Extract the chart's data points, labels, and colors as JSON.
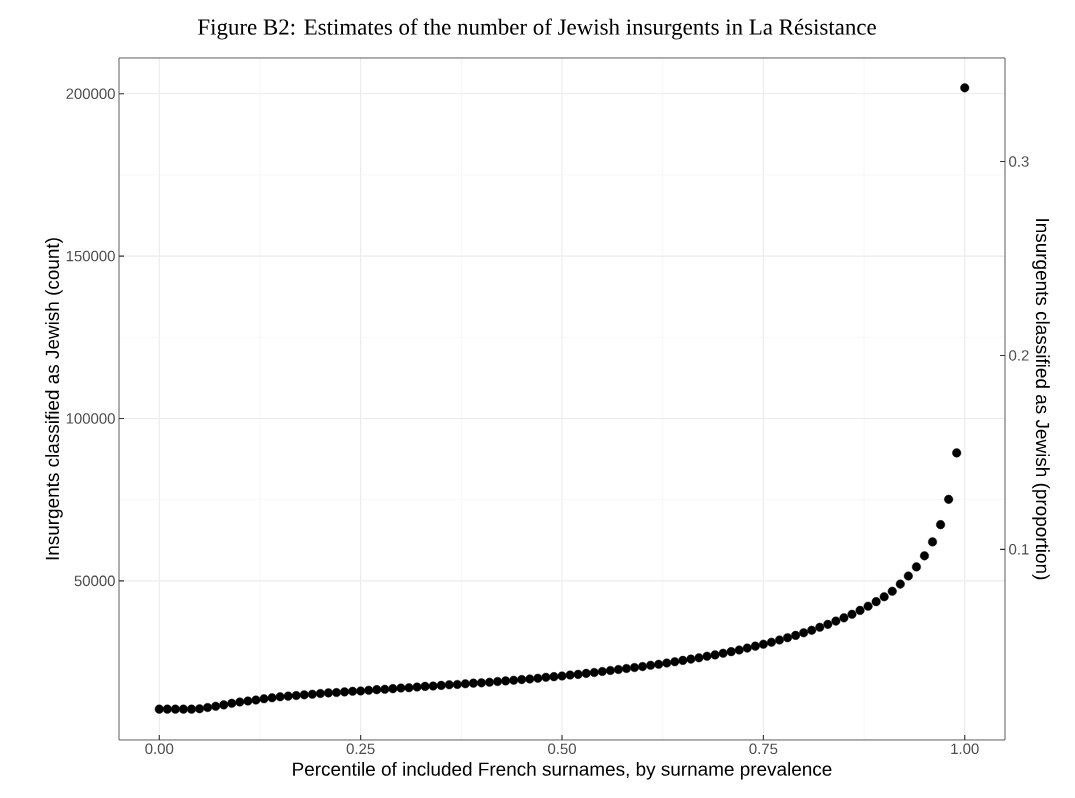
{
  "chart_data": {
    "type": "scatter",
    "title": "Figure B2: Estimates of the number of Jewish insurgents in La Résistance",
    "xlabel": "Percentile of included French surnames, by surname prevalence",
    "ylabel": "Insurgents classified as Jewish (count)",
    "y2label": "Insurgents classified as Jewish (proportion)",
    "x": [
      0,
      0.01,
      0.02,
      0.03,
      0.04,
      0.05,
      0.06,
      0.07,
      0.08,
      0.09,
      0.1,
      0.11,
      0.12,
      0.13,
      0.14,
      0.15,
      0.16,
      0.17,
      0.18,
      0.19,
      0.2,
      0.21,
      0.22,
      0.23,
      0.24,
      0.25,
      0.26,
      0.27,
      0.28,
      0.29,
      0.3,
      0.31,
      0.32,
      0.33,
      0.34,
      0.35,
      0.36,
      0.37,
      0.38,
      0.39,
      0.4,
      0.41,
      0.42,
      0.43,
      0.44,
      0.45,
      0.46,
      0.47,
      0.48,
      0.49,
      0.5,
      0.51,
      0.52,
      0.53,
      0.54,
      0.55,
      0.56,
      0.57,
      0.58,
      0.59,
      0.6,
      0.61,
      0.62,
      0.63,
      0.64,
      0.65,
      0.66,
      0.67,
      0.68,
      0.69,
      0.7,
      0.71,
      0.72,
      0.73,
      0.74,
      0.75,
      0.76,
      0.77,
      0.78,
      0.79,
      0.8,
      0.81,
      0.82,
      0.83,
      0.84,
      0.85,
      0.86,
      0.87,
      0.88,
      0.89,
      0.9,
      0.91,
      0.92,
      0.93,
      0.94,
      0.95,
      0.96,
      0.97,
      0.98,
      0.99,
      1
    ],
    "values": [
      10500,
      10500,
      10500,
      10500,
      10500,
      10600,
      11000,
      11400,
      11800,
      12300,
      12700,
      13000,
      13300,
      13700,
      14000,
      14300,
      14500,
      14700,
      14900,
      15100,
      15300,
      15500,
      15600,
      15800,
      16000,
      16100,
      16300,
      16500,
      16600,
      16800,
      17000,
      17100,
      17300,
      17500,
      17600,
      17800,
      18000,
      18100,
      18300,
      18500,
      18600,
      18800,
      19000,
      19200,
      19400,
      19600,
      19800,
      20000,
      20300,
      20500,
      20700,
      21000,
      21200,
      21500,
      21800,
      22100,
      22400,
      22700,
      23000,
      23300,
      23600,
      24000,
      24300,
      24700,
      25100,
      25500,
      25900,
      26300,
      26800,
      27200,
      27700,
      28200,
      28700,
      29300,
      29900,
      30500,
      31100,
      31800,
      32500,
      33200,
      34000,
      34800,
      35700,
      36600,
      37600,
      38600,
      39700,
      40900,
      42200,
      43600,
      45100,
      46800,
      49000,
      51500,
      54300,
      57700,
      62000,
      67300,
      75100,
      89400,
      201800
    ],
    "color": "#000000",
    "marker": "circle",
    "grid": true,
    "xlim": [
      -0.05,
      1.05
    ],
    "ylim": [
      1000,
      211000
    ],
    "xticks": [
      {
        "value": 0,
        "label": "0.00"
      },
      {
        "value": 0.25,
        "label": "0.25"
      },
      {
        "value": 0.5,
        "label": "0.50"
      },
      {
        "value": 0.75,
        "label": "0.75"
      },
      {
        "value": 1,
        "label": "1.00"
      }
    ],
    "yticks": [
      50000,
      100000,
      150000,
      200000
    ],
    "y2lim": [
      0.00168,
      0.3534
    ],
    "y2ticks": [
      0.1,
      0.2,
      0.3
    ]
  }
}
